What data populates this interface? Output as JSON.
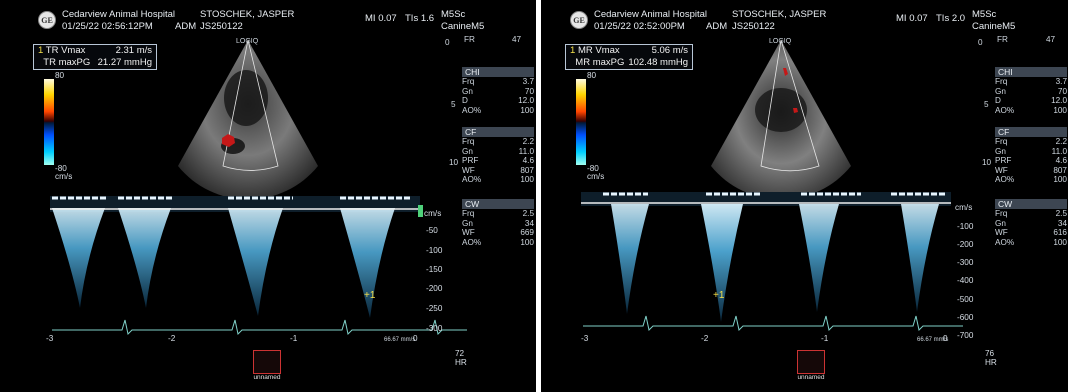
{
  "panels": [
    {
      "hospital": "Cedarview Animal Hospital",
      "datetime": "01/25/22 02:56:12PM",
      "adm": "ADM",
      "patient": "STOSCHEK, JASPER",
      "patient_id": "JS250122",
      "mi": "MI 0.07",
      "tis": "TIs 1.6",
      "probe": "M5Sc",
      "preset": "CanineM5",
      "brand": "LOGIQ",
      "measurements": [
        {
          "marker": "1",
          "label": "TR Vmax",
          "value": "2.31 m/s"
        },
        {
          "marker": "",
          "label": "TR maxPG",
          "value": "21.27 mmHg"
        }
      ],
      "colorbar_top": "80",
      "colorbar_bottom": "-80",
      "colorbar_unit": "cm/s",
      "fr": {
        "label": "FR",
        "value": "47"
      },
      "depth_zero": "0",
      "depth_five": "5",
      "depth_ten": "10",
      "chi": {
        "title": "CHI",
        "rows": [
          [
            "Frq",
            "3.7"
          ],
          [
            "Gn",
            "70"
          ],
          [
            "D",
            "12.0"
          ],
          [
            "AO%",
            "100"
          ]
        ]
      },
      "cf": {
        "title": "CF",
        "rows": [
          [
            "Frq",
            "2.2"
          ],
          [
            "Gn",
            "11.0"
          ],
          [
            "PRF",
            "4.6"
          ],
          [
            "WF",
            "807"
          ],
          [
            "AO%",
            "100"
          ]
        ]
      },
      "cw": {
        "title": "CW",
        "rows": [
          [
            "Frq",
            "2.5"
          ],
          [
            "Gn",
            "34"
          ],
          [
            "WF",
            "669"
          ],
          [
            "AO%",
            "100"
          ]
        ]
      },
      "vel_unit": "cm/s",
      "vel_scale": [
        "-50",
        "-100",
        "-150",
        "-200",
        "-250",
        "-300"
      ],
      "time_labels": [
        "-3",
        "-2",
        "-1",
        "0"
      ],
      "sweep": "66.67 mm/s",
      "hr_value": "72",
      "hr_label": "HR",
      "thumb_label": "unnamed"
    },
    {
      "hospital": "Cedarview Animal Hospital",
      "datetime": "01/25/22 02:52:00PM",
      "adm": "ADM",
      "patient": "STOSCHEK, JASPER",
      "patient_id": "JS250122",
      "mi": "MI 0.07",
      "tis": "TIs 2.0",
      "probe": "M5Sc",
      "preset": "CanineM5",
      "brand": "LOGIQ",
      "measurements": [
        {
          "marker": "1",
          "label": "MR Vmax",
          "value": "5.06 m/s"
        },
        {
          "marker": "",
          "label": "MR maxPG",
          "value": "102.48 mmHg"
        }
      ],
      "colorbar_top": "80",
      "colorbar_bottom": "-80",
      "colorbar_unit": "cm/s",
      "fr": {
        "label": "FR",
        "value": "47"
      },
      "depth_zero": "0",
      "depth_five": "5",
      "depth_ten": "10",
      "chi": {
        "title": "CHI",
        "rows": [
          [
            "Frq",
            "3.7"
          ],
          [
            "Gn",
            "70"
          ],
          [
            "D",
            "12.0"
          ],
          [
            "AO%",
            "100"
          ]
        ]
      },
      "cf": {
        "title": "CF",
        "rows": [
          [
            "Frq",
            "2.2"
          ],
          [
            "Gn",
            "11.0"
          ],
          [
            "PRF",
            "4.6"
          ],
          [
            "WF",
            "807"
          ],
          [
            "AO%",
            "100"
          ]
        ]
      },
      "cw": {
        "title": "CW",
        "rows": [
          [
            "Frq",
            "2.5"
          ],
          [
            "Gn",
            "34"
          ],
          [
            "WF",
            "616"
          ],
          [
            "AO%",
            "100"
          ]
        ]
      },
      "vel_unit": "cm/s",
      "vel_scale": [
        "-100",
        "-200",
        "-300",
        "-400",
        "-500",
        "-600",
        "-700"
      ],
      "time_labels": [
        "-3",
        "-2",
        "-1",
        "0"
      ],
      "sweep": "66.67 mm/s",
      "hr_value": "76",
      "hr_label": "HR",
      "thumb_label": "unnamed"
    }
  ]
}
